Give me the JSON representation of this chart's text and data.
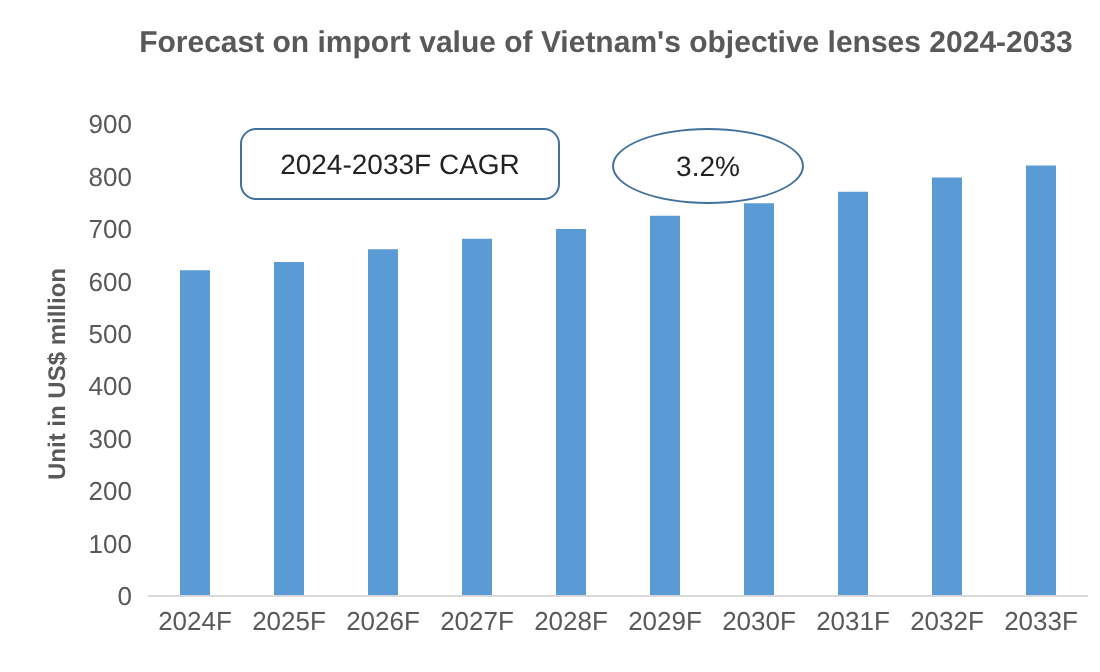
{
  "chart_data": {
    "type": "bar",
    "title": "Forecast on import value of Vietnam's objective lenses 2024-2033",
    "ylabel": "Unit in US$ million",
    "categories": [
      "2024F",
      "2025F",
      "2026F",
      "2027F",
      "2028F",
      "2029F",
      "2030F",
      "2031F",
      "2032F",
      "2033F"
    ],
    "values": [
      621,
      637,
      661,
      681,
      700,
      725,
      749,
      771,
      798,
      821
    ],
    "color": "#5b9bd5",
    "ylim": [
      0,
      900
    ],
    "yticks": [
      0,
      100,
      200,
      300,
      400,
      500,
      600,
      700,
      800,
      900
    ],
    "grid": false,
    "annotations": [
      "2024-2033F CAGR",
      "3.2%"
    ]
  }
}
